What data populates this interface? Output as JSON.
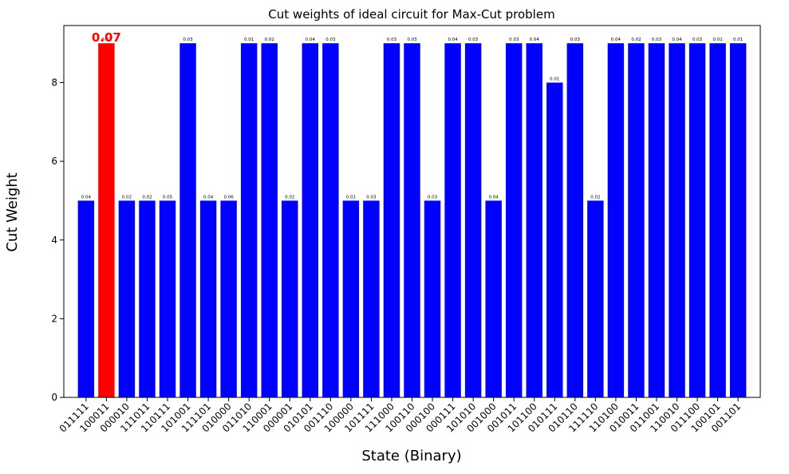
{
  "chart_data": {
    "type": "bar",
    "title": "Cut weights of ideal circuit for Max-Cut problem",
    "xlabel": "State (Binary)",
    "ylabel": "Cut Weight",
    "ylim": [
      0,
      9.45
    ],
    "yticks": [
      0,
      2,
      4,
      6,
      8
    ],
    "grid": false,
    "colors": {
      "default": "#0000ff",
      "highlight": "#ff0000",
      "highlight_label": "#ff0000"
    },
    "highlight_index": 1,
    "categories": [
      "011111",
      "100011",
      "000010",
      "111011",
      "110111",
      "101001",
      "111101",
      "010000",
      "011010",
      "110001",
      "000001",
      "010101",
      "001110",
      "100000",
      "101111",
      "111000",
      "100110",
      "000100",
      "000111",
      "101010",
      "001000",
      "001011",
      "101100",
      "010111",
      "010110",
      "111110",
      "110100",
      "010011",
      "011001",
      "110010",
      "011100",
      "100101",
      "001101"
    ],
    "values": [
      5,
      9,
      5,
      5,
      5,
      9,
      5,
      5,
      9,
      9,
      5,
      9,
      9,
      5,
      5,
      9,
      9,
      5,
      9,
      9,
      5,
      9,
      9,
      8,
      9,
      5,
      9,
      9,
      9,
      9,
      9,
      9,
      9
    ],
    "bar_labels": [
      "0.04",
      "0.07",
      "0.02",
      "0.02",
      "0.05",
      "0.03",
      "0.04",
      "0.06",
      "0.01",
      "0.02",
      "0.02",
      "0.04",
      "0.03",
      "0.01",
      "0.03",
      "0.03",
      "0.03",
      "0.03",
      "0.04",
      "0.03",
      "0.04",
      "0.03",
      "0.04",
      "0.01",
      "0.03",
      "0.02",
      "0.04",
      "0.02",
      "0.03",
      "0.04",
      "0.03",
      "0.01",
      "0.01"
    ]
  }
}
